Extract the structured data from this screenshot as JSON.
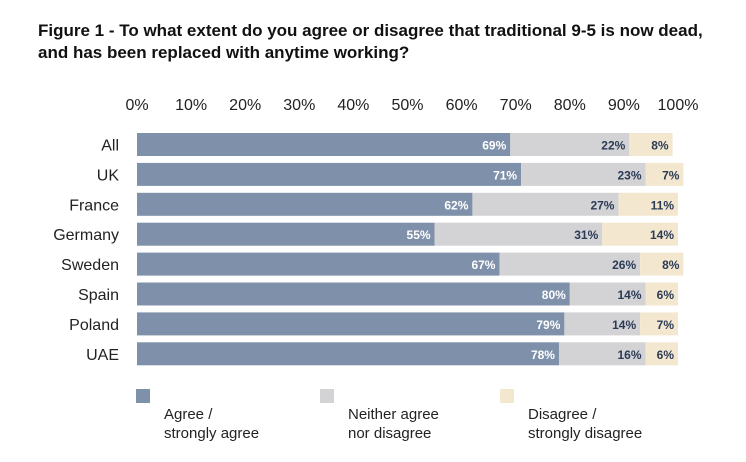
{
  "title": "Figure 1 - To what extent do you agree or disagree that traditional 9-5 is now dead, and has been replaced with anytime working?",
  "chart_data": {
    "type": "bar",
    "orientation": "horizontal",
    "stacked": true,
    "categories": [
      "All",
      "UK",
      "France",
      "Germany",
      "Sweden",
      "Spain",
      "Poland",
      "UAE"
    ],
    "series": [
      {
        "name": "Agree / strongly agree",
        "color": "#7f91aa",
        "values": [
          69,
          71,
          62,
          55,
          67,
          80,
          79,
          78
        ]
      },
      {
        "name": "Neither agree nor disagree",
        "color": "#d3d3d5",
        "values": [
          22,
          23,
          27,
          31,
          26,
          14,
          14,
          16
        ]
      },
      {
        "name": "Disagree / strongly disagree",
        "color": "#f3e8cf",
        "values": [
          8,
          7,
          11,
          14,
          8,
          6,
          7,
          6
        ]
      }
    ],
    "xticks": [
      "0%",
      "10%",
      "20%",
      "30%",
      "40%",
      "50%",
      "60%",
      "70%",
      "80%",
      "90%",
      "100%"
    ],
    "xlim": [
      0,
      100
    ],
    "grid": false,
    "legend_position": "bottom"
  },
  "legend": [
    {
      "line1": "Agree /",
      "line2": "strongly agree",
      "color": "#7f91aa"
    },
    {
      "line1": "Neither agree",
      "line2": "nor disagree",
      "color": "#d3d3d5"
    },
    {
      "line1": "Disagree /",
      "line2": "strongly disagree",
      "color": "#f3e8cf"
    }
  ]
}
